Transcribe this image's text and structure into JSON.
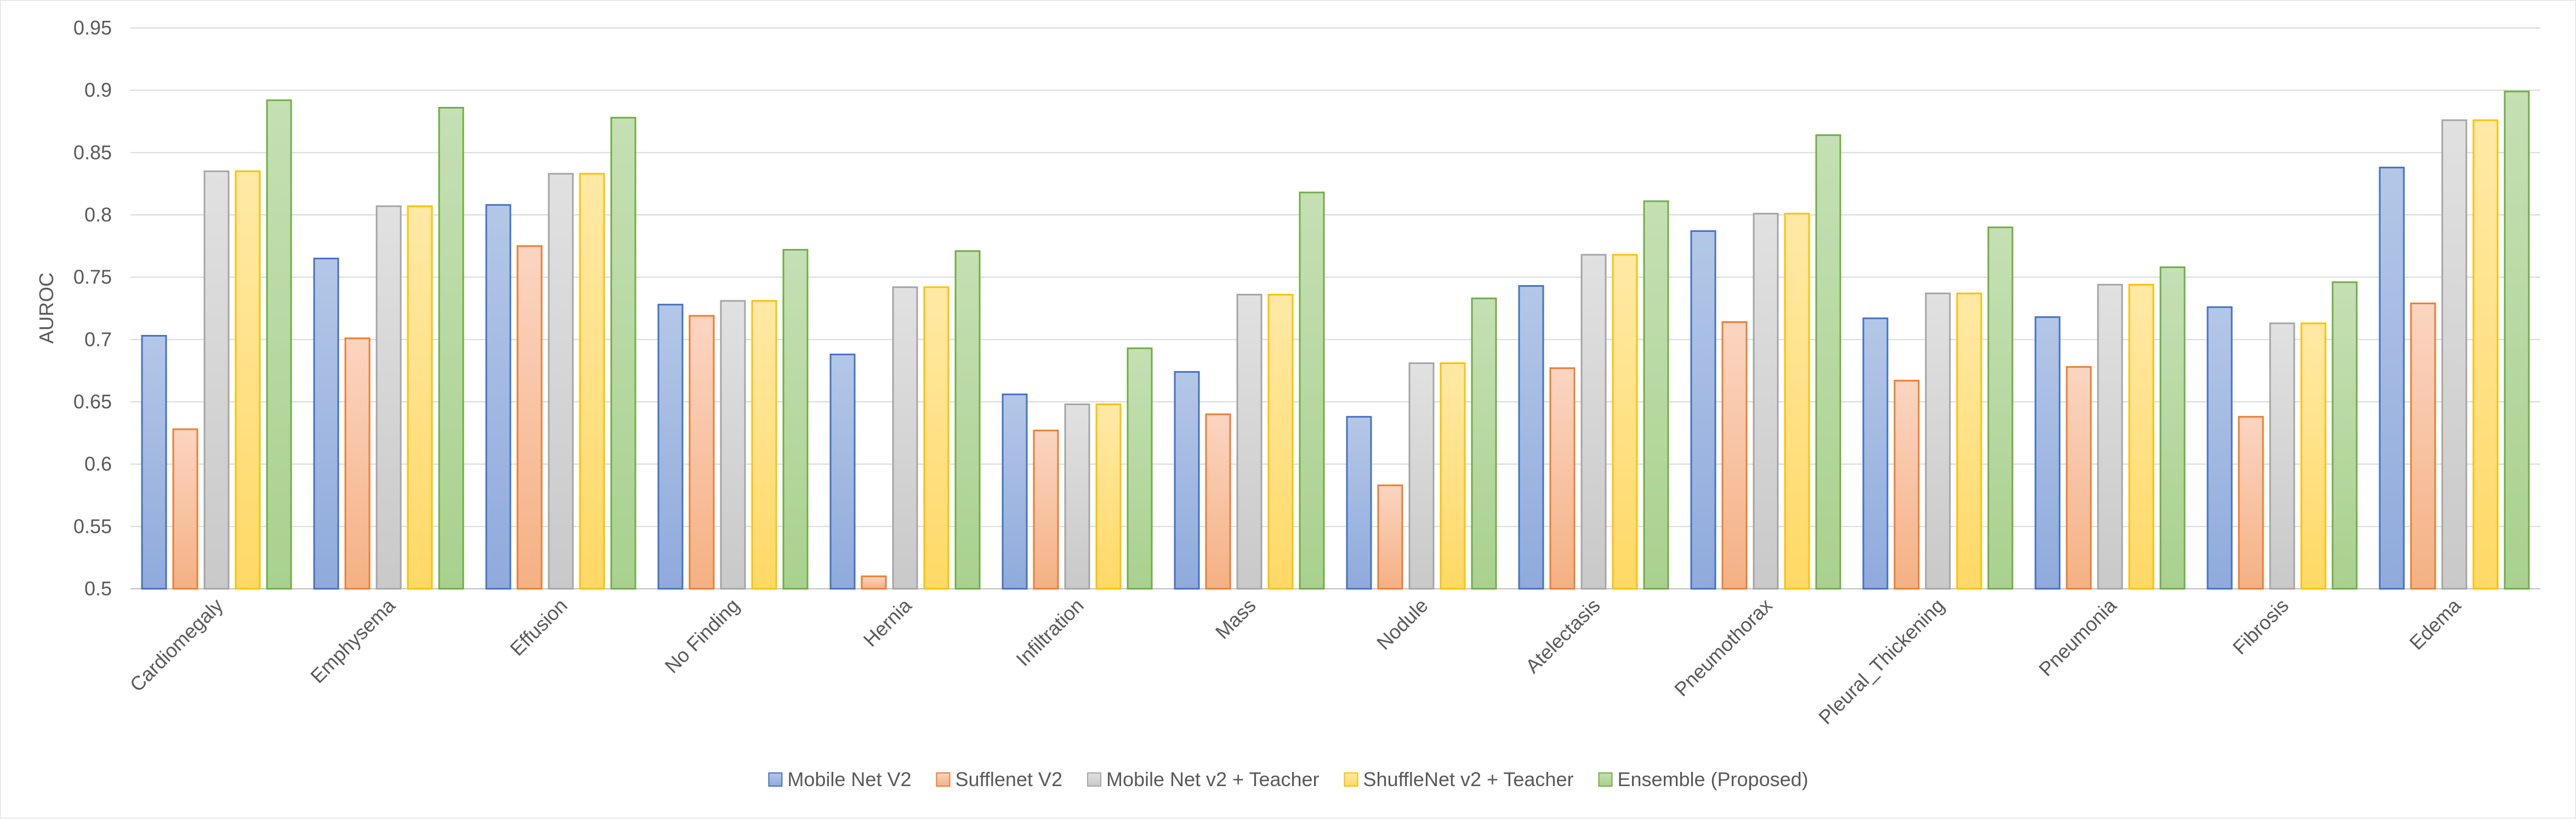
{
  "chart_data": {
    "type": "bar",
    "title": "",
    "xlabel": "",
    "ylabel": "AUROC",
    "ylim": [
      0.5,
      0.95
    ],
    "yticks": [
      0.5,
      0.55,
      0.6,
      0.65,
      0.7,
      0.75,
      0.8,
      0.85,
      0.9,
      0.95
    ],
    "ytick_labels": [
      "0.5",
      "0.55",
      "0.6",
      "0.65",
      "0.7",
      "0.75",
      "0.8",
      "0.85",
      "0.9",
      "0.95"
    ],
    "grid": "horizontal",
    "legend_position": "bottom",
    "categories": [
      "Cardiomegaly",
      "Emphysema",
      "Effusion",
      "No Finding",
      "Hernia",
      "Infiltration",
      "Mass",
      "Nodule",
      "Atelectasis",
      "Pneumothorax",
      "Pleural_Thickening",
      "Pneumonia",
      "Fibrosis",
      "Edema"
    ],
    "series": [
      {
        "name": "Mobile Net V2",
        "fill_top": "#b4c7e7",
        "fill_bottom": "#8faadc",
        "stroke": "#4472c4",
        "values": [
          0.703,
          0.765,
          0.808,
          0.728,
          0.688,
          0.656,
          0.674,
          0.638,
          0.743,
          0.787,
          0.717,
          0.718,
          0.726,
          0.838
        ]
      },
      {
        "name": "Sufflenet V2",
        "fill_top": "#fbd5c2",
        "fill_bottom": "#f4b183",
        "stroke": "#ed7d31",
        "values": [
          0.628,
          0.701,
          0.775,
          0.719,
          0.51,
          0.627,
          0.64,
          0.583,
          0.677,
          0.714,
          0.667,
          0.678,
          0.638,
          0.729
        ]
      },
      {
        "name": "Mobile Net v2 + Teacher",
        "fill_top": "#e1e1e1",
        "fill_bottom": "#c9c9c9",
        "stroke": "#a5a5a5",
        "values": [
          0.835,
          0.807,
          0.833,
          0.731,
          0.742,
          0.648,
          0.736,
          0.681,
          0.768,
          0.801,
          0.737,
          0.744,
          0.713,
          0.876
        ]
      },
      {
        "name": "ShuffleNet v2 + Teacher",
        "fill_top": "#ffe9a6",
        "fill_bottom": "#ffd966",
        "stroke": "#ffc000",
        "values": [
          0.835,
          0.807,
          0.833,
          0.731,
          0.742,
          0.648,
          0.736,
          0.681,
          0.768,
          0.801,
          0.737,
          0.744,
          0.713,
          0.876
        ]
      },
      {
        "name": "Ensemble (Proposed)",
        "fill_top": "#c5e0b4",
        "fill_bottom": "#a9d18e",
        "stroke": "#70ad47",
        "values": [
          0.892,
          0.886,
          0.878,
          0.772,
          0.771,
          0.693,
          0.818,
          0.733,
          0.811,
          0.864,
          0.79,
          0.758,
          0.746,
          0.899
        ]
      }
    ]
  }
}
